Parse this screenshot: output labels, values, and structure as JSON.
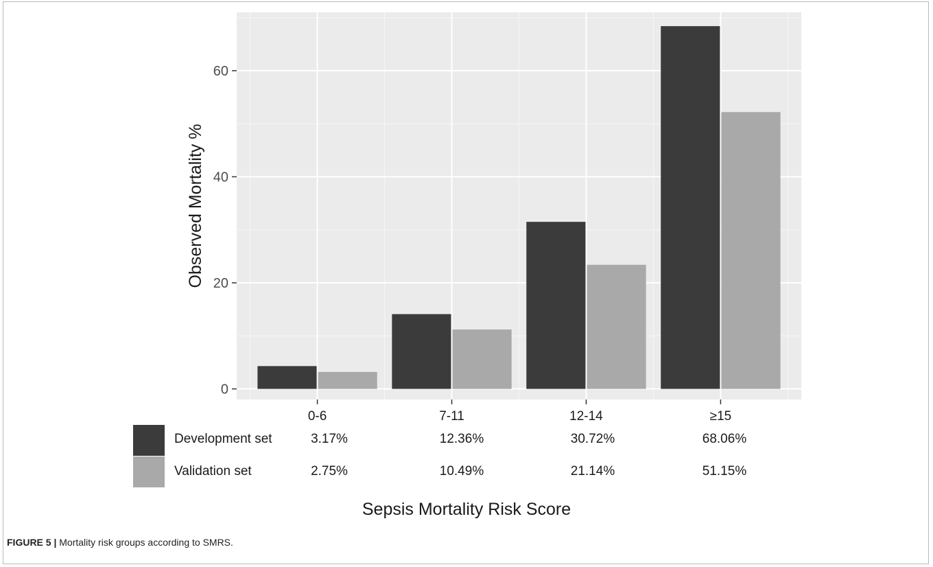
{
  "chart_data": {
    "type": "bar",
    "categories": [
      "0-6",
      "7-11",
      "12-14",
      "≥15"
    ],
    "series": [
      {
        "name": "Development set",
        "color": "#3b3b3b",
        "values": [
          4.3,
          14.1,
          31.5,
          68.4
        ]
      },
      {
        "name": "Validation set",
        "color": "#a9a9a9",
        "values": [
          3.2,
          11.2,
          23.4,
          52.2
        ]
      }
    ],
    "ylabel": "Observed Mortality %",
    "xlabel": "Sepsis Mortality Risk Score",
    "ylim": [
      -2,
      71
    ],
    "yticks": [
      0,
      20,
      40,
      60
    ],
    "grid": true,
    "panel_background": "#ebebeb",
    "table": {
      "rows": [
        {
          "label": "Development set",
          "values": [
            "3.17%",
            "12.36%",
            "30.72%",
            "68.06%"
          ]
        },
        {
          "label": "Validation set",
          "values": [
            "2.75%",
            "10.49%",
            "21.14%",
            "51.15%"
          ]
        }
      ]
    }
  },
  "caption": {
    "label": "FIGURE 5 |",
    "text": " Mortality risk groups according to SMRS."
  }
}
